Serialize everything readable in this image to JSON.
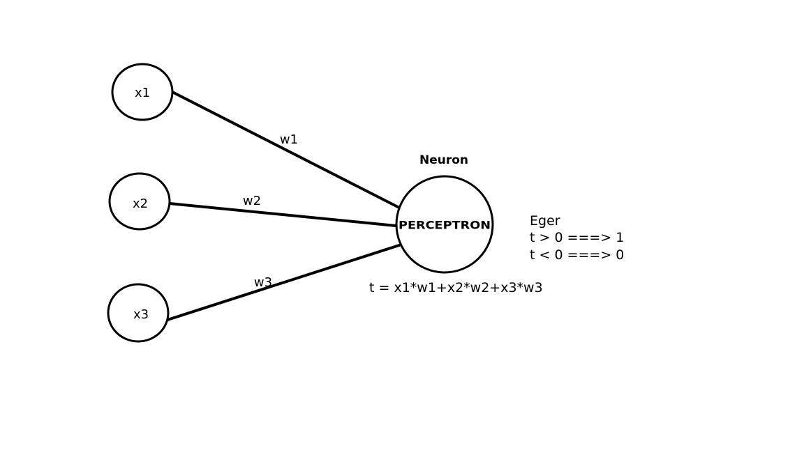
{
  "colors": {
    "stroke": "#000000",
    "background": "#ffffff"
  },
  "inputs": [
    {
      "id": "x1",
      "label": "x1"
    },
    {
      "id": "x2",
      "label": "x2"
    },
    {
      "id": "x3",
      "label": "x3"
    }
  ],
  "weights": [
    {
      "id": "w1",
      "label": "w1"
    },
    {
      "id": "w2",
      "label": "w2"
    },
    {
      "id": "w3",
      "label": "w3"
    }
  ],
  "neuron": {
    "title": "Neuron",
    "label": "PERCEPTRON"
  },
  "formula": "t = x1*w1+x2*w2+x3*w3",
  "rules": {
    "heading": "Eger",
    "lines": [
      "t > 0 ===> 1",
      "t < 0 ===> 0"
    ]
  }
}
